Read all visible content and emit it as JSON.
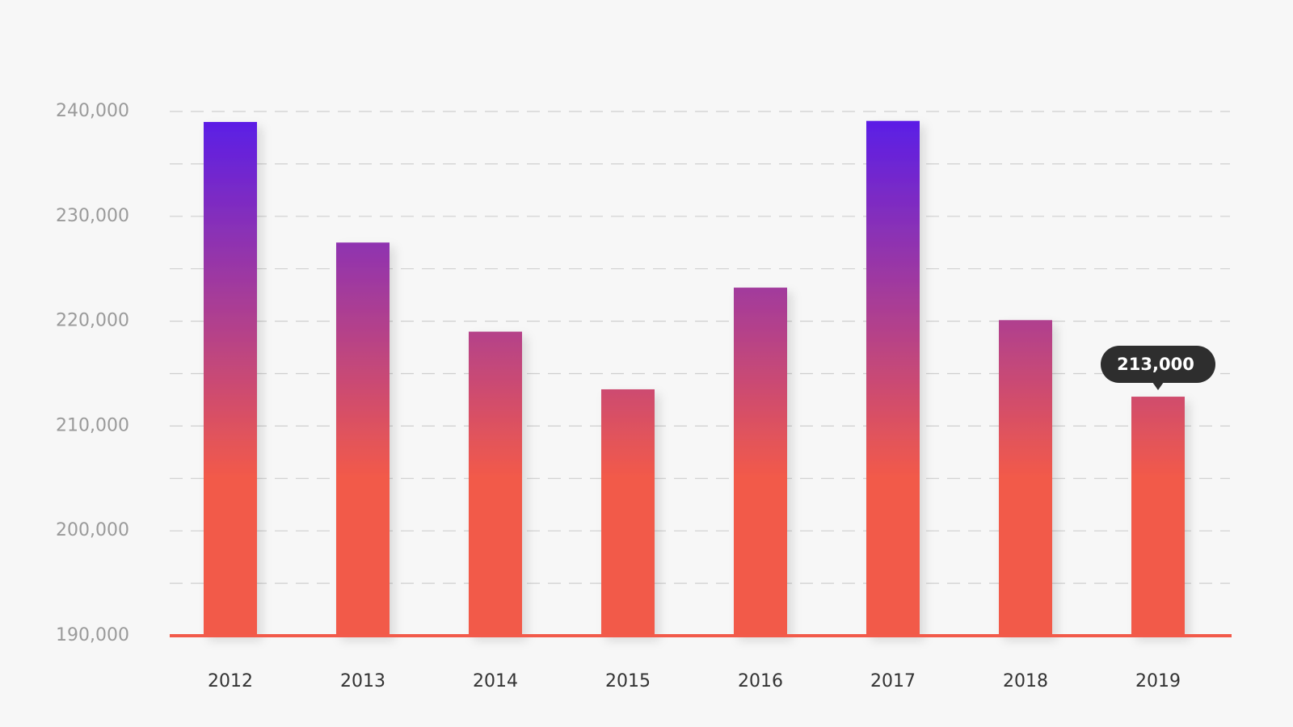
{
  "chart_data": {
    "type": "bar",
    "categories": [
      "2012",
      "2013",
      "2014",
      "2015",
      "2016",
      "2017",
      "2018",
      "2019"
    ],
    "values": [
      239000,
      227500,
      219000,
      213500,
      223200,
      239100,
      220100,
      212800
    ],
    "ylim": [
      190000,
      240000
    ],
    "y_ticks": [
      "190,000",
      "200,000",
      "210,000",
      "220,000",
      "230,000",
      "240,000"
    ],
    "y_tick_values": [
      190000,
      200000,
      210000,
      220000,
      230000,
      240000
    ],
    "grid": true,
    "title": "",
    "xlabel": "",
    "ylabel": "",
    "colors": {
      "bar_top": "#5b1ee6",
      "bar_bottom": "#f25a4a",
      "baseline": "#f25a4a",
      "gridline": "#cfcfcf",
      "tooltip_bg": "#2e2e2e"
    },
    "tooltip": {
      "category": "2019",
      "label": "213,000"
    }
  }
}
